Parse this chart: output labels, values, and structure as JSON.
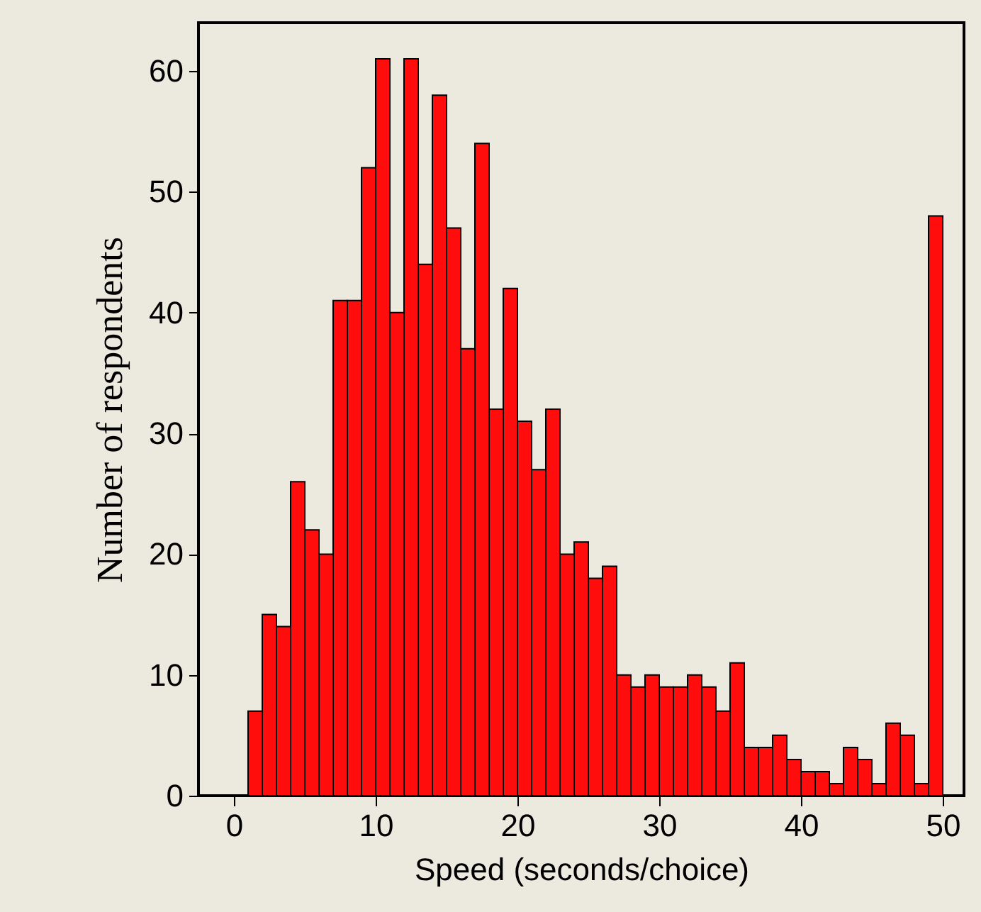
{
  "chart_data": {
    "type": "histogram",
    "xlabel": "Speed (seconds/choice)",
    "ylabel": "Number of respondents",
    "bins": [
      1,
      2,
      3,
      4,
      5,
      6,
      7,
      8,
      9,
      10,
      11,
      12,
      13,
      14,
      15,
      16,
      17,
      18,
      19,
      20,
      21,
      22,
      23,
      24,
      25,
      26,
      27,
      28,
      29,
      30,
      31,
      32,
      33,
      34,
      35,
      36,
      37,
      38,
      39,
      40,
      41,
      42,
      43,
      44,
      45,
      46,
      47,
      48,
      49,
      50
    ],
    "values": [
      7,
      15,
      14,
      26,
      22,
      20,
      41,
      41,
      52,
      61,
      40,
      61,
      44,
      58,
      47,
      37,
      54,
      32,
      42,
      31,
      27,
      32,
      20,
      21,
      18,
      19,
      10,
      9,
      10,
      9,
      9,
      10,
      9,
      7,
      11,
      4,
      4,
      5,
      3,
      2,
      2,
      1,
      4,
      3,
      1,
      6,
      5,
      1,
      48
    ],
    "color": "#ff0d0d",
    "xlim": [
      -2.5,
      51.5
    ],
    "xticks": [
      0,
      10,
      20,
      30,
      40,
      50
    ],
    "ylim": [
      0,
      64
    ],
    "yticks": [
      0,
      10,
      20,
      30,
      40,
      50,
      60
    ],
    "grid": false
  }
}
